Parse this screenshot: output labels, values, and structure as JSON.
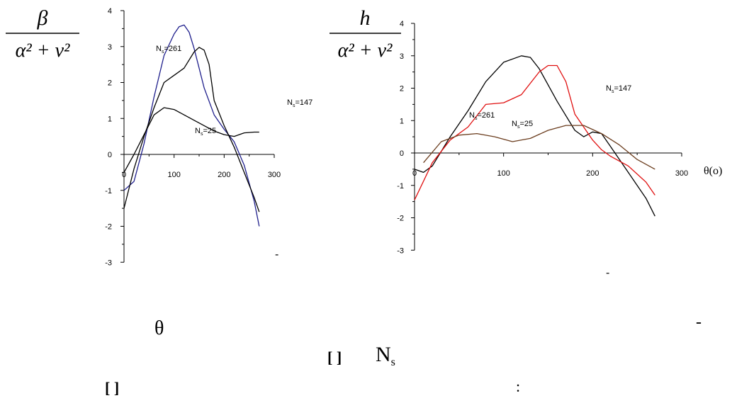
{
  "chart_data": [
    {
      "type": "line",
      "ylabel": {
        "numerator": "β",
        "denominator": "α² + ν²"
      },
      "xlim": [
        0,
        300
      ],
      "ylim": [
        -3,
        4
      ],
      "x_ticks": [
        "0",
        "100",
        "200",
        "300"
      ],
      "y_ticks": [
        "-3",
        "-2",
        "-1",
        "0",
        "1",
        "2",
        "3",
        "4"
      ],
      "series": [
        {
          "name": "Ns=261",
          "color": "#1f1f8c",
          "x": [
            0,
            20,
            40,
            60,
            80,
            100,
            110,
            120,
            130,
            140,
            150,
            160,
            180,
            200,
            220,
            240,
            260,
            270
          ],
          "y": [
            -1.0,
            -0.75,
            0.3,
            1.6,
            2.75,
            3.35,
            3.55,
            3.6,
            3.4,
            2.95,
            2.4,
            1.85,
            1.1,
            0.7,
            0.35,
            -0.3,
            -1.3,
            -2.0
          ]
        },
        {
          "name": "Ns=147",
          "color": "#000000",
          "x": [
            0,
            20,
            40,
            60,
            80,
            100,
            120,
            140,
            150,
            160,
            170,
            180,
            200,
            220,
            240,
            260,
            270
          ],
          "y": [
            -1.5,
            -0.4,
            0.5,
            1.3,
            2.0,
            2.2,
            2.4,
            2.85,
            2.98,
            2.9,
            2.5,
            1.5,
            0.8,
            0.2,
            -0.5,
            -1.2,
            -1.6
          ]
        },
        {
          "name": "Ns=25",
          "color": "#000000",
          "x": [
            0,
            20,
            40,
            60,
            80,
            100,
            120,
            140,
            160,
            180,
            200,
            220,
            240,
            260,
            270
          ],
          "y": [
            -0.5,
            0.0,
            0.55,
            1.1,
            1.3,
            1.25,
            1.1,
            0.95,
            0.8,
            0.65,
            0.55,
            0.5,
            0.6,
            0.62,
            0.62
          ]
        }
      ],
      "labels": [
        "Ns=261",
        "Ns=147",
        "Ns=25"
      ],
      "grid": false,
      "dash_mark": "-"
    },
    {
      "type": "line",
      "ylabel": {
        "numerator": "h",
        "denominator": "α² + ν²"
      },
      "xlabel": "θ(o)",
      "xlim": [
        0,
        300
      ],
      "ylim": [
        -3,
        4
      ],
      "x_ticks": [
        "0",
        "100",
        "200",
        "300"
      ],
      "y_ticks": [
        "-3",
        "-2",
        "-1",
        "0",
        "1",
        "2",
        "3",
        "4"
      ],
      "series": [
        {
          "name": "Ns=261",
          "color": "#000000",
          "x": [
            0,
            10,
            20,
            40,
            60,
            80,
            100,
            120,
            130,
            140,
            160,
            180,
            190,
            200,
            210,
            220,
            240,
            260,
            270
          ],
          "y": [
            -0.5,
            -0.6,
            -0.4,
            0.5,
            1.3,
            2.2,
            2.8,
            3.0,
            2.95,
            2.6,
            1.6,
            0.7,
            0.5,
            0.65,
            0.6,
            0.2,
            -0.6,
            -1.4,
            -1.95
          ]
        },
        {
          "name": "Ns=147",
          "color": "#e01010",
          "x": [
            0,
            20,
            40,
            60,
            80,
            100,
            120,
            140,
            150,
            160,
            170,
            180,
            200,
            210,
            220,
            240,
            260,
            270
          ],
          "y": [
            -1.45,
            -0.3,
            0.4,
            0.8,
            1.5,
            1.55,
            1.8,
            2.5,
            2.7,
            2.7,
            2.2,
            1.2,
            0.4,
            0.1,
            -0.1,
            -0.4,
            -0.9,
            -1.3
          ]
        },
        {
          "name": "Ns=25",
          "color": "#6b3d1e",
          "x": [
            10,
            30,
            50,
            70,
            90,
            110,
            130,
            150,
            170,
            190,
            210,
            230,
            250,
            270
          ],
          "y": [
            -0.3,
            0.35,
            0.55,
            0.6,
            0.5,
            0.35,
            0.45,
            0.7,
            0.85,
            0.85,
            0.6,
            0.25,
            -0.2,
            -0.5
          ]
        }
      ],
      "labels": [
        "Ns=261",
        "Ns=147",
        "Ns=25"
      ],
      "grid": false,
      "dash_mark": "-"
    }
  ],
  "caption": {
    "theta": "θ",
    "dash": "-",
    "bracket1": "[ ]",
    "ns_main": "N",
    "ns_sub": "s",
    "bracket2": "[ ]",
    "colon": ":"
  }
}
